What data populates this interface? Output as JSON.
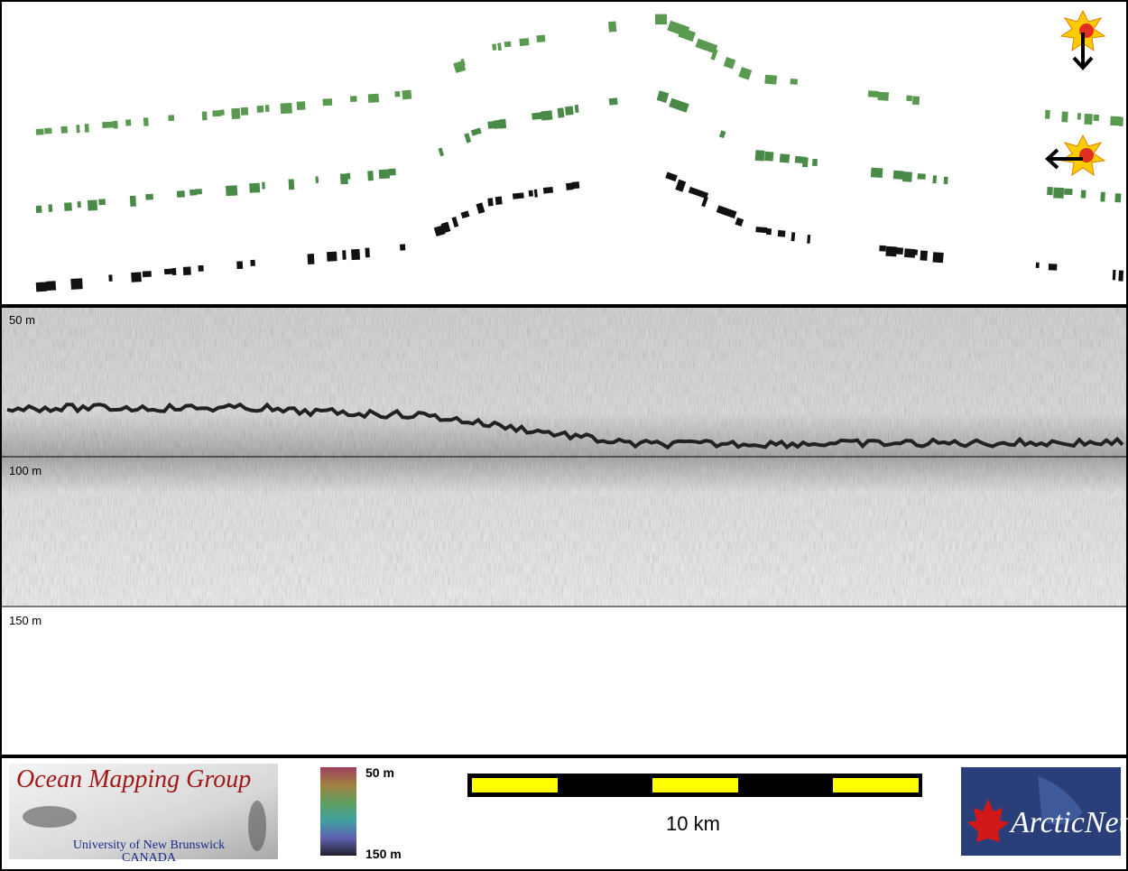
{
  "depth_labels": [
    "50 m",
    "100 m",
    "150 m"
  ],
  "logo_left": {
    "title": "Ocean Mapping Group",
    "university": "University of New Brunswick",
    "country": "CANADA"
  },
  "colorbar": {
    "top": "50 m",
    "bottom": "150 m"
  },
  "scale_bar": {
    "label": "10 km"
  },
  "logo_right": {
    "title": "ArcticNet"
  }
}
